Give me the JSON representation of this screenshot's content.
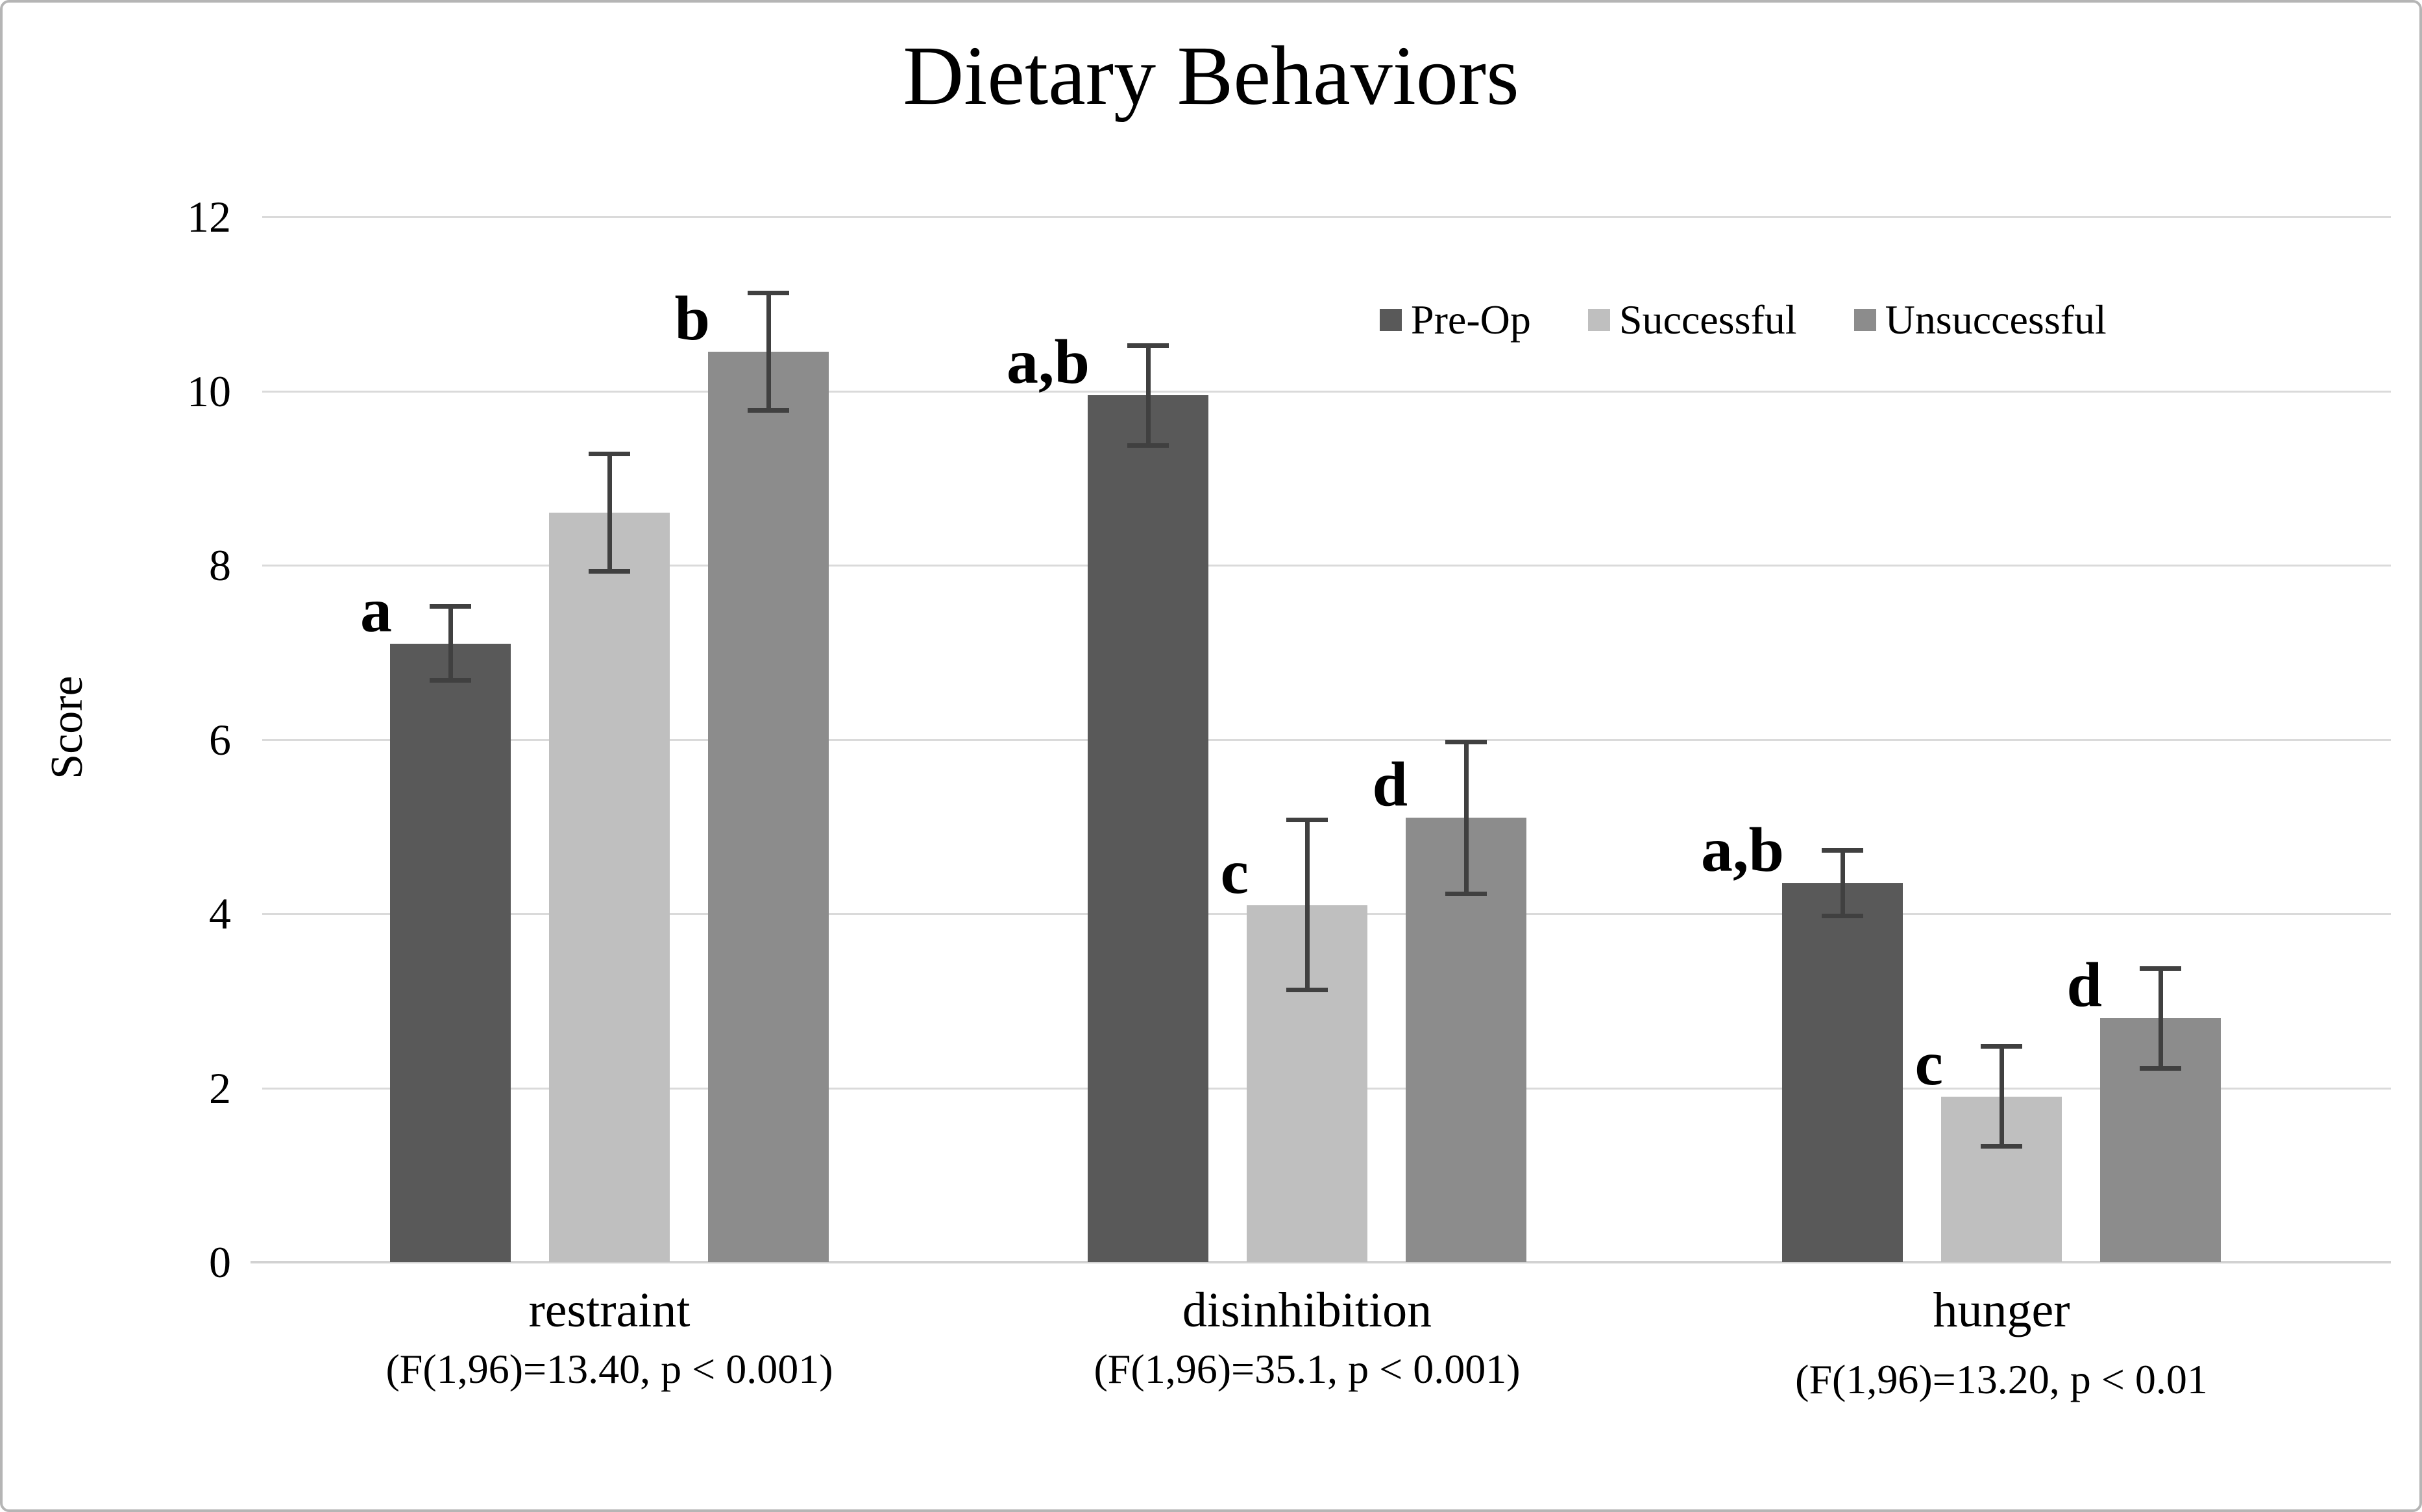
{
  "chart_data": {
    "type": "bar",
    "title": "Dietary Behaviors",
    "ylabel": "Score",
    "ylim": [
      0,
      12
    ],
    "yticks": [
      0,
      2,
      4,
      6,
      8,
      10,
      12
    ],
    "grid": "horizontal",
    "legend_position": "inside-top-right",
    "categories": [
      "restraint",
      "disinhibition",
      "hunger"
    ],
    "category_stats": [
      "(F(1,96)=13.40, p < 0.001)",
      "(F(1,96)=35.1, p < 0.001)",
      "(F(1,96)=13.20, p < 0.01"
    ],
    "series": [
      {
        "name": "Pre-Op",
        "color": "#595959",
        "values": [
          7.1,
          9.95,
          4.35
        ],
        "errors": [
          0.45,
          0.6,
          0.4
        ],
        "sig_letters": [
          "a",
          "a,b",
          "a,b"
        ]
      },
      {
        "name": "Successful",
        "color": "#bfbfbf",
        "values": [
          8.6,
          4.1,
          1.9
        ],
        "errors": [
          0.7,
          1.0,
          0.6
        ],
        "sig_letters": [
          "",
          "c",
          "c"
        ]
      },
      {
        "name": "Unsuccessful",
        "color": "#8c8c8c",
        "values": [
          10.45,
          5.1,
          2.8
        ],
        "errors": [
          0.7,
          0.9,
          0.6
        ],
        "sig_letters": [
          "b",
          "d",
          "d"
        ]
      }
    ],
    "error_bar_color": "#404040",
    "gridline_color": "#dadada"
  }
}
